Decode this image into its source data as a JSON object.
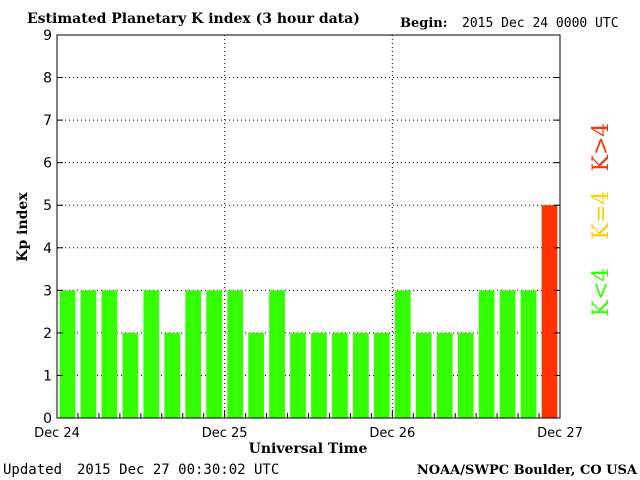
{
  "header": {
    "title": "Estimated Planetary K index (3 hour data)",
    "begin_label": "Begin:",
    "begin_value": "2015 Dec 24 0000 UTC"
  },
  "footer": {
    "updated_label": "Updated",
    "updated_value": "2015 Dec 27 00:30:02 UTC",
    "source": "NOAA/SWPC Boulder, CO USA"
  },
  "legend": {
    "below": {
      "label": "K<4",
      "color": "#33ff00"
    },
    "equal": {
      "label": "K=4",
      "color": "#ffcc00"
    },
    "above": {
      "label": "K>4",
      "color": "#ff3300"
    }
  },
  "chart_data": {
    "type": "bar",
    "title": "Estimated Planetary K index (3 hour data)",
    "xlabel": "Universal Time",
    "ylabel": "Kp index",
    "ylim": [
      0,
      9
    ],
    "yticks": [
      "0",
      "1",
      "2",
      "3",
      "4",
      "5",
      "6",
      "7",
      "8",
      "9"
    ],
    "x_tick_labels": [
      "Dec 24",
      "Dec 25",
      "Dec 26",
      "Dec 27"
    ],
    "grid": true,
    "bar_width_fraction": 0.75,
    "values": [
      3,
      3,
      3,
      2,
      3,
      2,
      3,
      3,
      3,
      2,
      3,
      2,
      2,
      2,
      2,
      2,
      3,
      2,
      2,
      2,
      3,
      3,
      3,
      5
    ],
    "colors": {
      "below": "#33ff00",
      "equal": "#ffcc00",
      "above": "#ff3300"
    }
  }
}
